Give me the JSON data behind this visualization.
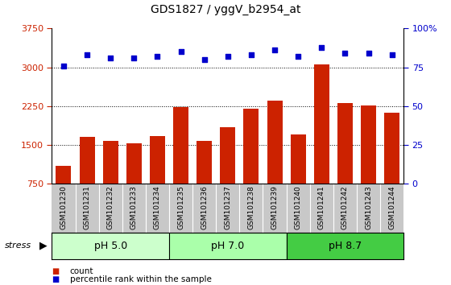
{
  "title": "GDS1827 / yggV_b2954_at",
  "categories": [
    "GSM101230",
    "GSM101231",
    "GSM101232",
    "GSM101233",
    "GSM101234",
    "GSM101235",
    "GSM101236",
    "GSM101237",
    "GSM101238",
    "GSM101239",
    "GSM101240",
    "GSM101241",
    "GSM101242",
    "GSM101243",
    "GSM101244"
  ],
  "bar_values": [
    1100,
    1650,
    1580,
    1530,
    1680,
    2230,
    1580,
    1850,
    2200,
    2350,
    1700,
    3050,
    2310,
    2270,
    2130
  ],
  "percentile_values": [
    76,
    83,
    81,
    81,
    82,
    85,
    80,
    82,
    83,
    86,
    82,
    88,
    84,
    84,
    83
  ],
  "bar_color": "#cc2200",
  "dot_color": "#0000cc",
  "left_ylim": [
    750,
    3750
  ],
  "left_yticks": [
    750,
    1500,
    2250,
    3000,
    3750
  ],
  "left_yticklabels": [
    "750",
    "1500",
    "2250",
    "3000",
    "3750"
  ],
  "right_ylim": [
    0,
    100
  ],
  "right_yticks": [
    0,
    25,
    50,
    75,
    100
  ],
  "right_yticklabels": [
    "0",
    "25",
    "50",
    "75",
    "100%"
  ],
  "group_labels": [
    "pH 5.0",
    "pH 7.0",
    "pH 8.7"
  ],
  "group_ranges": [
    [
      0,
      5
    ],
    [
      5,
      10
    ],
    [
      10,
      15
    ]
  ],
  "group_colors": [
    "#aaeebb",
    "#bbffbb",
    "#55dd55"
  ],
  "stress_label": "stress",
  "legend_count_label": "count",
  "legend_percentile_label": "percentile rank within the sample",
  "grid_yticks": [
    1500,
    2250,
    3000
  ],
  "tick_area_color": "#c8c8c8",
  "group_strip_colors": [
    "#ccffcc",
    "#aaffaa",
    "#44cc44"
  ]
}
